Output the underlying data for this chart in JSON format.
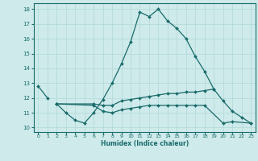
{
  "xlabel": "Humidex (Indice chaleur)",
  "bg_color": "#ceeaea",
  "line_color": "#1a6b6b",
  "grid_color": "#b0d8d8",
  "xlim": [
    -0.5,
    23.5
  ],
  "ylim": [
    9.7,
    18.4
  ],
  "yticks": [
    10,
    11,
    12,
    13,
    14,
    15,
    16,
    17,
    18
  ],
  "xticks": [
    0,
    1,
    2,
    3,
    4,
    5,
    6,
    7,
    8,
    9,
    10,
    11,
    12,
    13,
    14,
    15,
    16,
    17,
    18,
    19,
    20,
    21,
    22,
    23
  ],
  "lines": [
    {
      "x": [
        0,
        1
      ],
      "y": [
        12.8,
        12.0
      ]
    },
    {
      "x": [
        2,
        3,
        4,
        5,
        6,
        7,
        8,
        9,
        10,
        11,
        12,
        13,
        14,
        15,
        16,
        17,
        18,
        19
      ],
      "y": [
        11.6,
        11.0,
        10.5,
        10.3,
        11.0,
        11.9,
        13.0,
        14.3,
        15.8,
        17.8,
        17.5,
        18.0,
        17.2,
        16.7,
        16.0,
        14.8,
        13.8,
        12.6
      ]
    },
    {
      "x": [
        2,
        6,
        7,
        8,
        9,
        10,
        11,
        12,
        13,
        14,
        15,
        16,
        17,
        18,
        19,
        20,
        21,
        22,
        23
      ],
      "y": [
        11.6,
        11.6,
        11.5,
        11.5,
        11.8,
        11.9,
        12.0,
        12.1,
        12.2,
        12.3,
        12.3,
        12.4,
        12.4,
        12.5,
        12.6,
        11.8,
        11.1,
        10.7,
        10.3
      ]
    },
    {
      "x": [
        2,
        6,
        7,
        8,
        9,
        10,
        11,
        12,
        13,
        14,
        15,
        16,
        17,
        18,
        20,
        21,
        23
      ],
      "y": [
        11.6,
        11.5,
        11.1,
        11.0,
        11.2,
        11.3,
        11.4,
        11.5,
        11.5,
        11.5,
        11.5,
        11.5,
        11.5,
        11.5,
        10.3,
        10.4,
        10.3
      ]
    }
  ]
}
